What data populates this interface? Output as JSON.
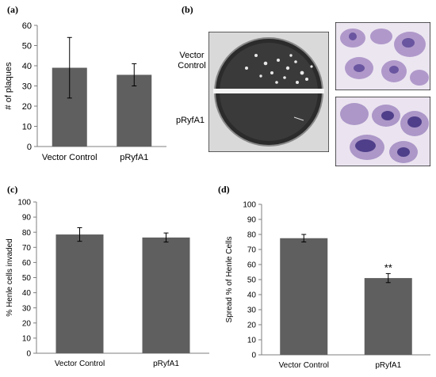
{
  "panel_labels": {
    "a": "(a)",
    "b": "(b)",
    "c": "(c)",
    "d": "(d)"
  },
  "micrograph": {
    "label_top": [
      "Vector",
      "Control"
    ],
    "label_bottom": "pRyfA1"
  },
  "chart_data": [
    {
      "type": "bar",
      "categories": [
        "Vector Control",
        "pRyfA1"
      ],
      "values": [
        39,
        35.5
      ],
      "errors": [
        15,
        5.5
      ],
      "annotations": [
        "",
        ""
      ],
      "xlabel": "",
      "ylabel": "# of plaques",
      "ylim": [
        0,
        60
      ],
      "yticks": [
        0,
        10,
        20,
        30,
        40,
        50,
        60
      ],
      "grid": false
    },
    {
      "type": "bar",
      "categories": [
        "Vector Control",
        "pRyfA1"
      ],
      "values": [
        78.5,
        76.5
      ],
      "errors": [
        4.5,
        3
      ],
      "annotations": [
        "",
        ""
      ],
      "xlabel": "",
      "ylabel": "% Henle cells invaded",
      "ylim": [
        0,
        100
      ],
      "yticks": [
        0,
        10,
        20,
        30,
        40,
        50,
        60,
        70,
        80,
        90,
        100
      ],
      "grid": false
    },
    {
      "type": "bar",
      "categories": [
        "Vector Control",
        "pRyfA1"
      ],
      "values": [
        77.5,
        51
      ],
      "errors": [
        2.5,
        3
      ],
      "annotations": [
        "",
        "**"
      ],
      "xlabel": "",
      "ylabel": "Spread % of Henle Cells",
      "ylim": [
        0,
        100
      ],
      "yticks": [
        0,
        10,
        20,
        30,
        40,
        50,
        60,
        70,
        80,
        90,
        100
      ],
      "grid": false
    }
  ],
  "colors": {
    "bar": "#5f5f5f",
    "axis": "#7f7f7f",
    "error_bar": "#000000"
  }
}
